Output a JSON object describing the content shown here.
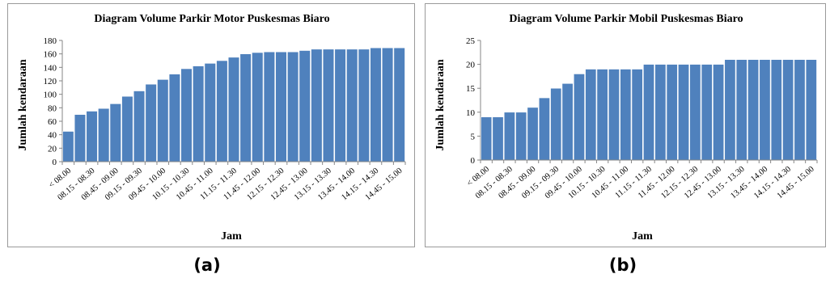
{
  "captions": {
    "a": "(a)",
    "b": "(b)"
  },
  "chart_data": [
    {
      "type": "bar",
      "title": "Diagram Volume Parkir Motor Puskesmas Biaro",
      "xlabel": "Jam",
      "ylabel": "Jumlah kendaraan",
      "ylim": [
        0,
        180
      ],
      "yticks": [
        0,
        20,
        40,
        60,
        80,
        100,
        120,
        140,
        160,
        180
      ],
      "grid": false,
      "bar_color": "#4f81bd",
      "tick_labels": [
        "< 08.00",
        "08.15 - 08.30",
        "08.45 - 09.00",
        "09.15 - 09.30",
        "09.45 - 10.00",
        "10.15 - 10.30",
        "10.45 - 11.00",
        "11.15 - 11.30",
        "11.45 - 12.00",
        "12.15 - 12.30",
        "12.45 - 13.00",
        "13.15 - 13.30",
        "13.45 - 14.00",
        "14.15 - 14.30",
        "14.45 - 15.00"
      ],
      "values": [
        45,
        70,
        75,
        79,
        86,
        97,
        105,
        115,
        122,
        130,
        138,
        142,
        146,
        150,
        155,
        160,
        162,
        163,
        163,
        163,
        165,
        167,
        167,
        167,
        167,
        167,
        169,
        169,
        169
      ]
    },
    {
      "type": "bar",
      "title": "Diagram Volume Parkir Mobil Puskesmas Biaro",
      "xlabel": "Jam",
      "ylabel": "Jumlah kendaraan",
      "ylim": [
        0,
        25
      ],
      "yticks": [
        0,
        5,
        10,
        15,
        20,
        25
      ],
      "grid": false,
      "bar_color": "#4f81bd",
      "tick_labels": [
        "< 08.00",
        "08.15 - 08.30",
        "08.45 - 09.00",
        "09.15 - 09.30",
        "09.45 - 10.00",
        "10.15 - 10.30",
        "10.45 - 11.00",
        "11.15 - 11.30",
        "11.45 - 12.00",
        "12.15 - 12.30",
        "12.45 - 13.00",
        "13.15 - 13.30",
        "13.45 - 14.00",
        "14.15 - 14.30",
        "14.45 - 15.00"
      ],
      "values": [
        9,
        9,
        10,
        10,
        11,
        13,
        15,
        16,
        18,
        19,
        19,
        19,
        19,
        19,
        20,
        20,
        20,
        20,
        20,
        20,
        20,
        21,
        21,
        21,
        21,
        21,
        21,
        21,
        21
      ]
    }
  ]
}
